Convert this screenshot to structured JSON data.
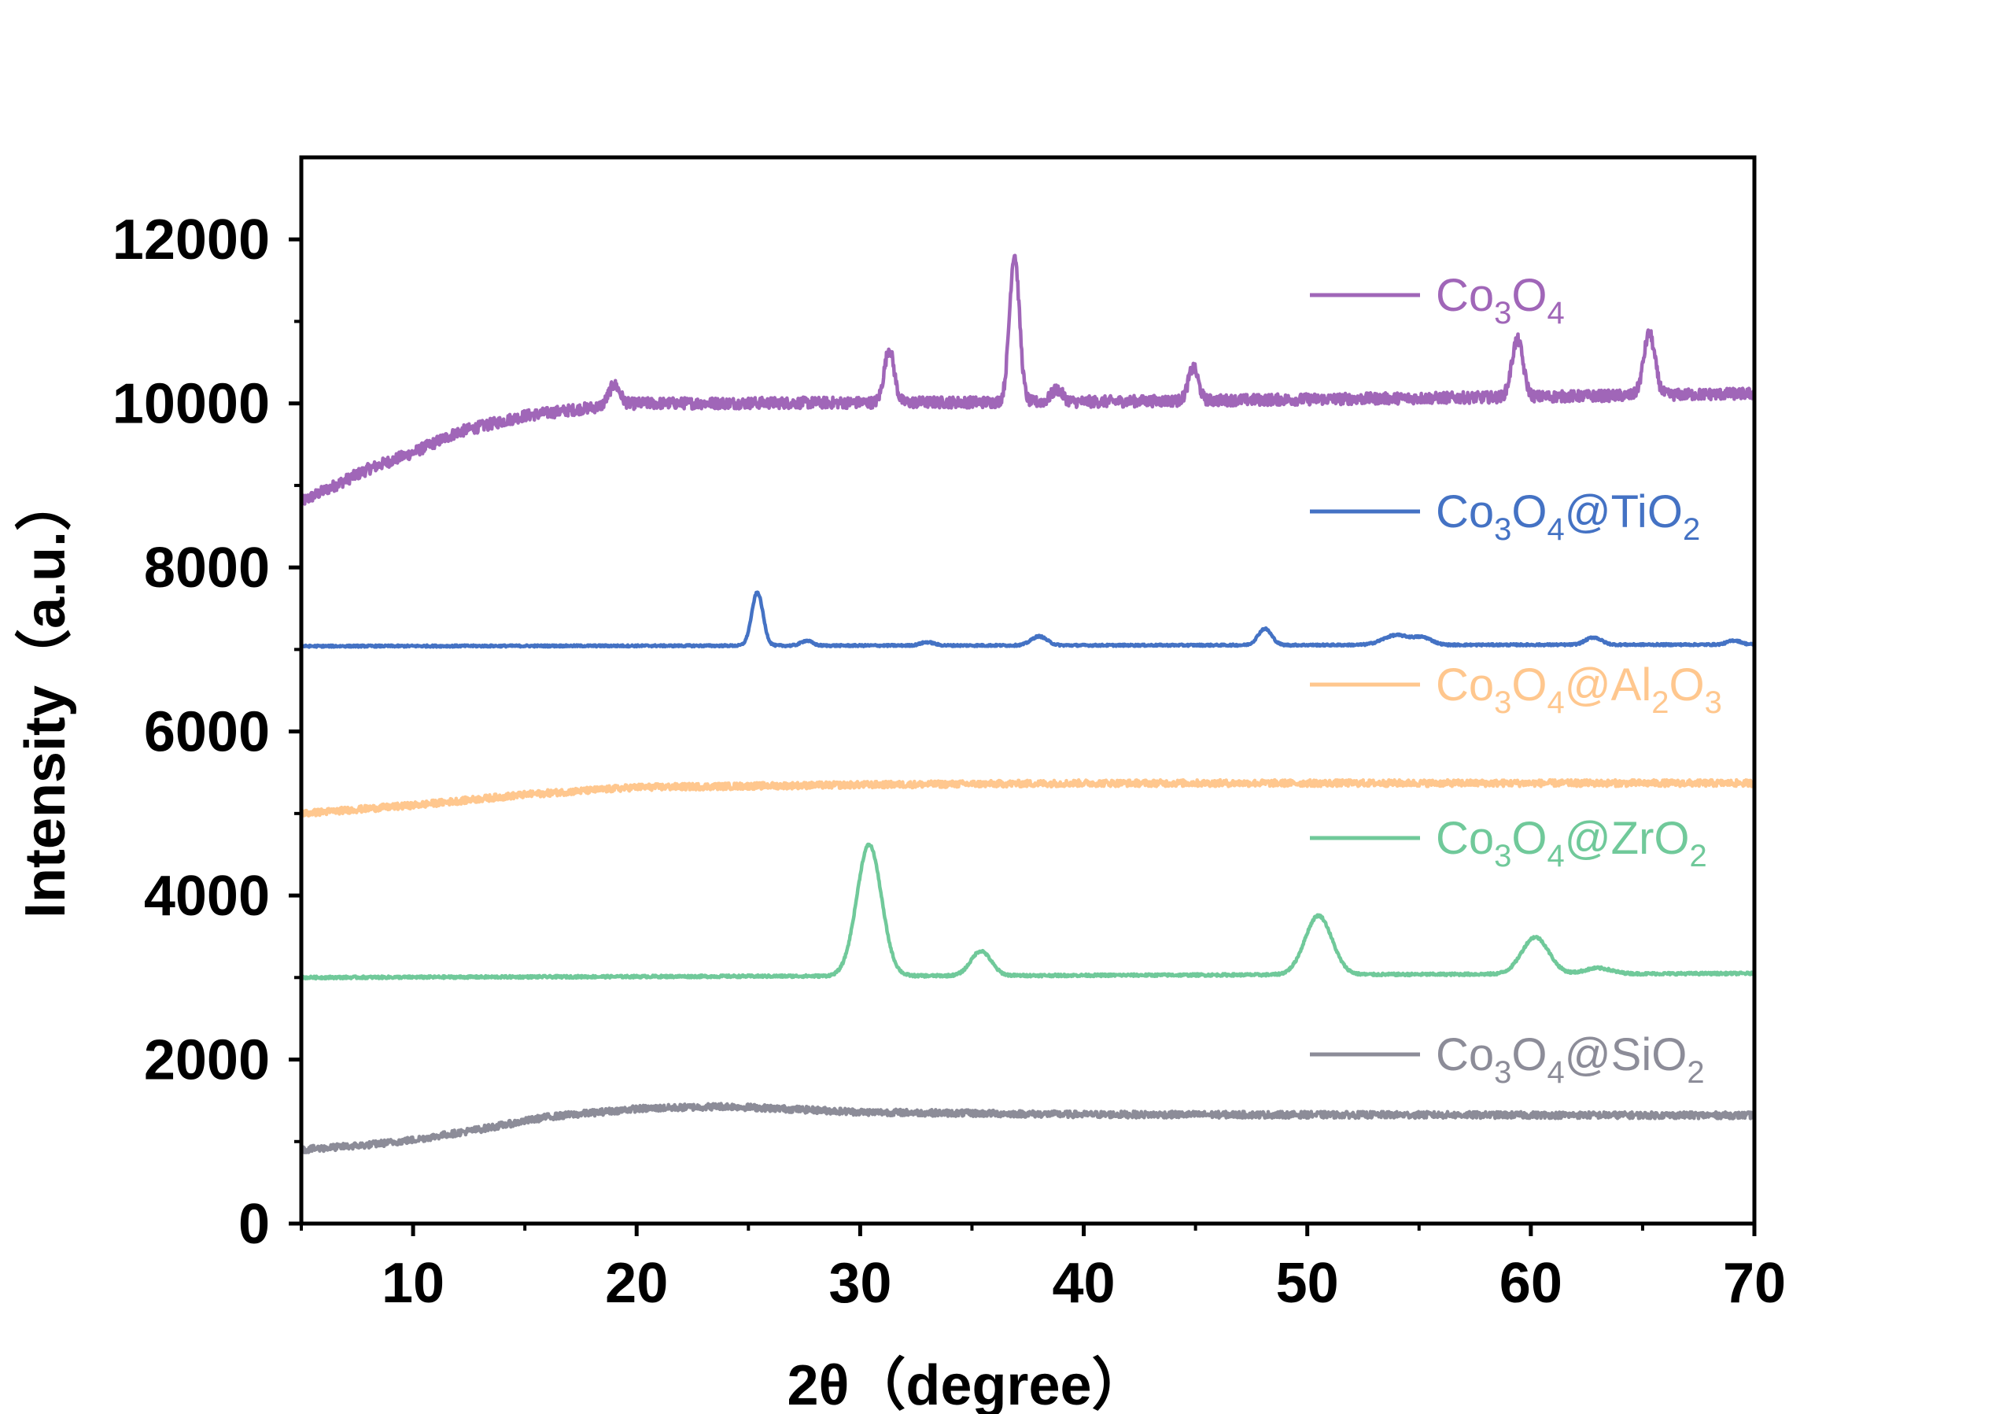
{
  "chart_data": {
    "type": "line",
    "xlabel": "2θ（degree）",
    "ylabel": "Intensity（a.u.）",
    "xlim": [
      5,
      70
    ],
    "ylim": [
      0,
      13000
    ],
    "x_ticks": [
      10,
      20,
      30,
      40,
      50,
      60,
      70
    ],
    "y_ticks": [
      0,
      2000,
      4000,
      6000,
      8000,
      10000,
      12000
    ],
    "grid": false,
    "legend_position": "right, beside each curve",
    "series": [
      {
        "id": "co3o4",
        "name": "Co₃O₄",
        "legend_parts": [
          [
            "Co",
            ""
          ],
          [
            "3",
            "sub"
          ],
          [
            "O",
            ""
          ],
          [
            "4",
            "sub"
          ]
        ],
        "color": "#A066B8",
        "noise": 70,
        "baseline": [
          [
            5,
            8800
          ],
          [
            8,
            9200
          ],
          [
            10,
            9400
          ],
          [
            12,
            9650
          ],
          [
            15,
            9850
          ],
          [
            18,
            9950
          ],
          [
            20,
            10000
          ],
          [
            40,
            10020
          ],
          [
            60,
            10080
          ],
          [
            70,
            10120
          ]
        ],
        "peaks": [
          [
            19.0,
            250,
            0.25
          ],
          [
            31.3,
            650,
            0.22
          ],
          [
            36.9,
            1800,
            0.22
          ],
          [
            38.8,
            150,
            0.25
          ],
          [
            44.9,
            400,
            0.22
          ],
          [
            59.4,
            700,
            0.25
          ],
          [
            65.3,
            750,
            0.25
          ]
        ]
      },
      {
        "id": "co3o4-tio2",
        "name": "Co₃O₄@TiO₂",
        "legend_parts": [
          [
            "Co",
            ""
          ],
          [
            "3",
            "sub"
          ],
          [
            "O",
            ""
          ],
          [
            "4",
            "sub"
          ],
          [
            "@TiO",
            ""
          ],
          [
            "2",
            "sub"
          ]
        ],
        "color": "#4472C4",
        "noise": 12,
        "baseline": [
          [
            5,
            7040
          ],
          [
            70,
            7060
          ]
        ],
        "peaks": [
          [
            25.4,
            650,
            0.25
          ],
          [
            27.6,
            60,
            0.25
          ],
          [
            33.0,
            40,
            0.3
          ],
          [
            38.0,
            110,
            0.35
          ],
          [
            48.1,
            200,
            0.3
          ],
          [
            54.0,
            120,
            0.6
          ],
          [
            55.2,
            80,
            0.4
          ],
          [
            62.8,
            90,
            0.35
          ],
          [
            69.1,
            50,
            0.3
          ]
        ]
      },
      {
        "id": "co3o4-al2o3",
        "name": "Co₃O₄@Al₂O₃",
        "legend_parts": [
          [
            "Co",
            ""
          ],
          [
            "3",
            "sub"
          ],
          [
            "O",
            ""
          ],
          [
            "4",
            "sub"
          ],
          [
            "@Al",
            ""
          ],
          [
            "2",
            "sub"
          ],
          [
            "O",
            ""
          ],
          [
            "3",
            "sub"
          ]
        ],
        "color": "#FFC78E",
        "noise": 40,
        "baseline": [
          [
            5,
            5000
          ],
          [
            10,
            5100
          ],
          [
            15,
            5230
          ],
          [
            20,
            5320
          ],
          [
            30,
            5350
          ],
          [
            40,
            5370
          ],
          [
            70,
            5370
          ]
        ],
        "peaks": []
      },
      {
        "id": "co3o4-zro2",
        "name": "Co₃O₄@ZrO₂",
        "legend_parts": [
          [
            "Co",
            ""
          ],
          [
            "3",
            "sub"
          ],
          [
            "O",
            ""
          ],
          [
            "4",
            "sub"
          ],
          [
            "@ZrO",
            ""
          ],
          [
            "2",
            "sub"
          ]
        ],
        "color": "#70C99A",
        "noise": 15,
        "baseline": [
          [
            5,
            3000
          ],
          [
            70,
            3050
          ]
        ],
        "peaks": [
          [
            30.4,
            1600,
            0.55
          ],
          [
            35.4,
            300,
            0.45
          ],
          [
            50.5,
            720,
            0.6
          ],
          [
            60.2,
            450,
            0.6
          ],
          [
            63.0,
            70,
            0.6
          ]
        ]
      },
      {
        "id": "co3o4-sio2",
        "name": "Co₃O₄@SiO₂",
        "legend_parts": [
          [
            "Co",
            ""
          ],
          [
            "3",
            "sub"
          ],
          [
            "O",
            ""
          ],
          [
            "4",
            "sub"
          ],
          [
            "@SiO",
            ""
          ],
          [
            "2",
            "sub"
          ]
        ],
        "color": "#8C8C98",
        "noise": 40,
        "baseline": [
          [
            5,
            900
          ],
          [
            8,
            960
          ],
          [
            10,
            1020
          ],
          [
            13,
            1150
          ],
          [
            16,
            1300
          ],
          [
            20,
            1400
          ],
          [
            24,
            1430
          ],
          [
            30,
            1360
          ],
          [
            40,
            1330
          ],
          [
            70,
            1320
          ]
        ],
        "peaks": []
      }
    ]
  }
}
